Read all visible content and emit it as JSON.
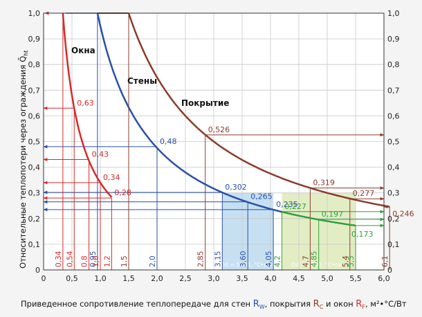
{
  "colors": {
    "background": "#f4f4f4",
    "plot_bg": "#ffffff",
    "grid": "#c8c8c8",
    "axis": "#333333",
    "windows": "#d42a2a",
    "walls": "#2a4fa6",
    "walls_green": "#2f9f3a",
    "roof": "#8a3b2a",
    "band_5000": "#b8d8ef",
    "band_8000": "#dbe9b5"
  },
  "chart_data": {
    "type": "line",
    "xlabel_prefix": "Приведенное сопротивление теплопередаче для стен ",
    "xlabel_rw": "R",
    "xlabel_rw_sub": "W",
    "xlabel_mid1": ", покрытия ",
    "xlabel_rc": "R",
    "xlabel_rc_sub": "C",
    "xlabel_mid2": " и окон ",
    "xlabel_rf": "R",
    "xlabel_rf_sub": "F",
    "xlabel_unit": ", м²•°C/Вт",
    "ylabel": "Относительные теплопотери через ограждения Q̄",
    "ylabel_sub": "ht",
    "xlim": [
      0,
      6.0
    ],
    "ylim": [
      0,
      1.0
    ],
    "x_ticks": [
      "0",
      "0,5",
      "1,0",
      "1,5",
      "2,0",
      "2,5",
      "3,0",
      "3,5",
      "4,0",
      "4,5",
      "5,0",
      "5,5",
      "6,0"
    ],
    "y_ticks": [
      "0",
      "0,1",
      "0,2",
      "0,3",
      "0,4",
      "0,5",
      "0,6",
      "0,7",
      "0,8",
      "0,9",
      "1,0"
    ],
    "series": [
      {
        "name": "Окна",
        "k": 0.34,
        "x_start": 0.34,
        "x_end": 1.2
      },
      {
        "name": "Стены",
        "k": 0.95,
        "x_start": 0.95,
        "x_end": 4.2
      },
      {
        "name": "",
        "k": 0.95,
        "x_start": 4.2,
        "x_end": 5.5
      },
      {
        "name": "Покрытие",
        "k": 1.5,
        "x_start": 1.5,
        "x_end": 6.1
      }
    ],
    "points": [
      {
        "series": "windows",
        "x": 0.54,
        "y": 0.63,
        "label": "0,63"
      },
      {
        "series": "windows",
        "x": 0.8,
        "y": 0.43,
        "label": "0,43"
      },
      {
        "series": "windows",
        "x": 1.0,
        "y": 0.34,
        "label": "0,34"
      },
      {
        "series": "windows",
        "x": 1.2,
        "y": 0.28,
        "label": "0,28"
      },
      {
        "series": "walls",
        "x": 2.0,
        "y": 0.48,
        "label": "0,48"
      },
      {
        "series": "walls",
        "x": 3.15,
        "y": 0.302,
        "label": "0,302"
      },
      {
        "series": "walls",
        "x": 3.6,
        "y": 0.265,
        "label": "0,265"
      },
      {
        "series": "walls",
        "x": 4.05,
        "y": 0.235,
        "label": "0,235"
      },
      {
        "series": "walls_green",
        "x": 4.2,
        "y": 0.227,
        "label": "0,227"
      },
      {
        "series": "walls_green",
        "x": 4.85,
        "y": 0.197,
        "label": "0,197"
      },
      {
        "series": "walls_green",
        "x": 5.5,
        "y": 0.173,
        "label": "0,173"
      },
      {
        "series": "roof",
        "x": 2.85,
        "y": 0.526,
        "label": "0,526"
      },
      {
        "series": "roof",
        "x": 4.7,
        "y": 0.319,
        "label": "0,319"
      },
      {
        "series": "roof",
        "x": 5.4,
        "y": 0.277,
        "label": "0,277"
      },
      {
        "series": "roof",
        "x": 6.1,
        "y": 0.246,
        "label": "0,246"
      }
    ],
    "vertical_marks": [
      {
        "x": 0.34,
        "label": "0,34",
        "series": "windows"
      },
      {
        "x": 0.54,
        "label": "0,54",
        "series": "windows"
      },
      {
        "x": 0.8,
        "label": "0,8",
        "series": "windows"
      },
      {
        "x": 0.95,
        "label": "0,95",
        "series": "walls"
      },
      {
        "x": 1.0,
        "label": "1,0",
        "series": "windows"
      },
      {
        "x": 1.2,
        "label": "1,2",
        "series": "windows"
      },
      {
        "x": 1.5,
        "label": "1,5",
        "series": "roof"
      },
      {
        "x": 2.0,
        "label": "2,0",
        "series": "walls"
      },
      {
        "x": 2.85,
        "label": "2,85",
        "series": "roof"
      },
      {
        "x": 3.15,
        "label": "3,15",
        "series": "walls"
      },
      {
        "x": 3.6,
        "label": "3,60",
        "series": "walls"
      },
      {
        "x": 4.05,
        "label": "4,05",
        "series": "walls"
      },
      {
        "x": 4.2,
        "label": "4,2",
        "series": "walls_green"
      },
      {
        "x": 4.7,
        "label": "4,7",
        "series": "roof"
      },
      {
        "x": 4.85,
        "label": "4,85",
        "series": "walls_green"
      },
      {
        "x": 5.4,
        "label": "5,4",
        "series": "roof"
      },
      {
        "x": 5.5,
        "label": "5,5",
        "series": "walls_green"
      },
      {
        "x": 6.1,
        "label": "6,1",
        "series": "roof"
      }
    ],
    "bands": [
      {
        "x_from": 3.15,
        "x_to": 4.05,
        "label": "Dd = 5000, °C•сут.",
        "color_key": "band_5000"
      },
      {
        "x_from": 4.2,
        "x_to": 5.5,
        "label": "Dd = 8000, °C•сут.",
        "color_key": "band_8000"
      }
    ],
    "grid": true
  }
}
